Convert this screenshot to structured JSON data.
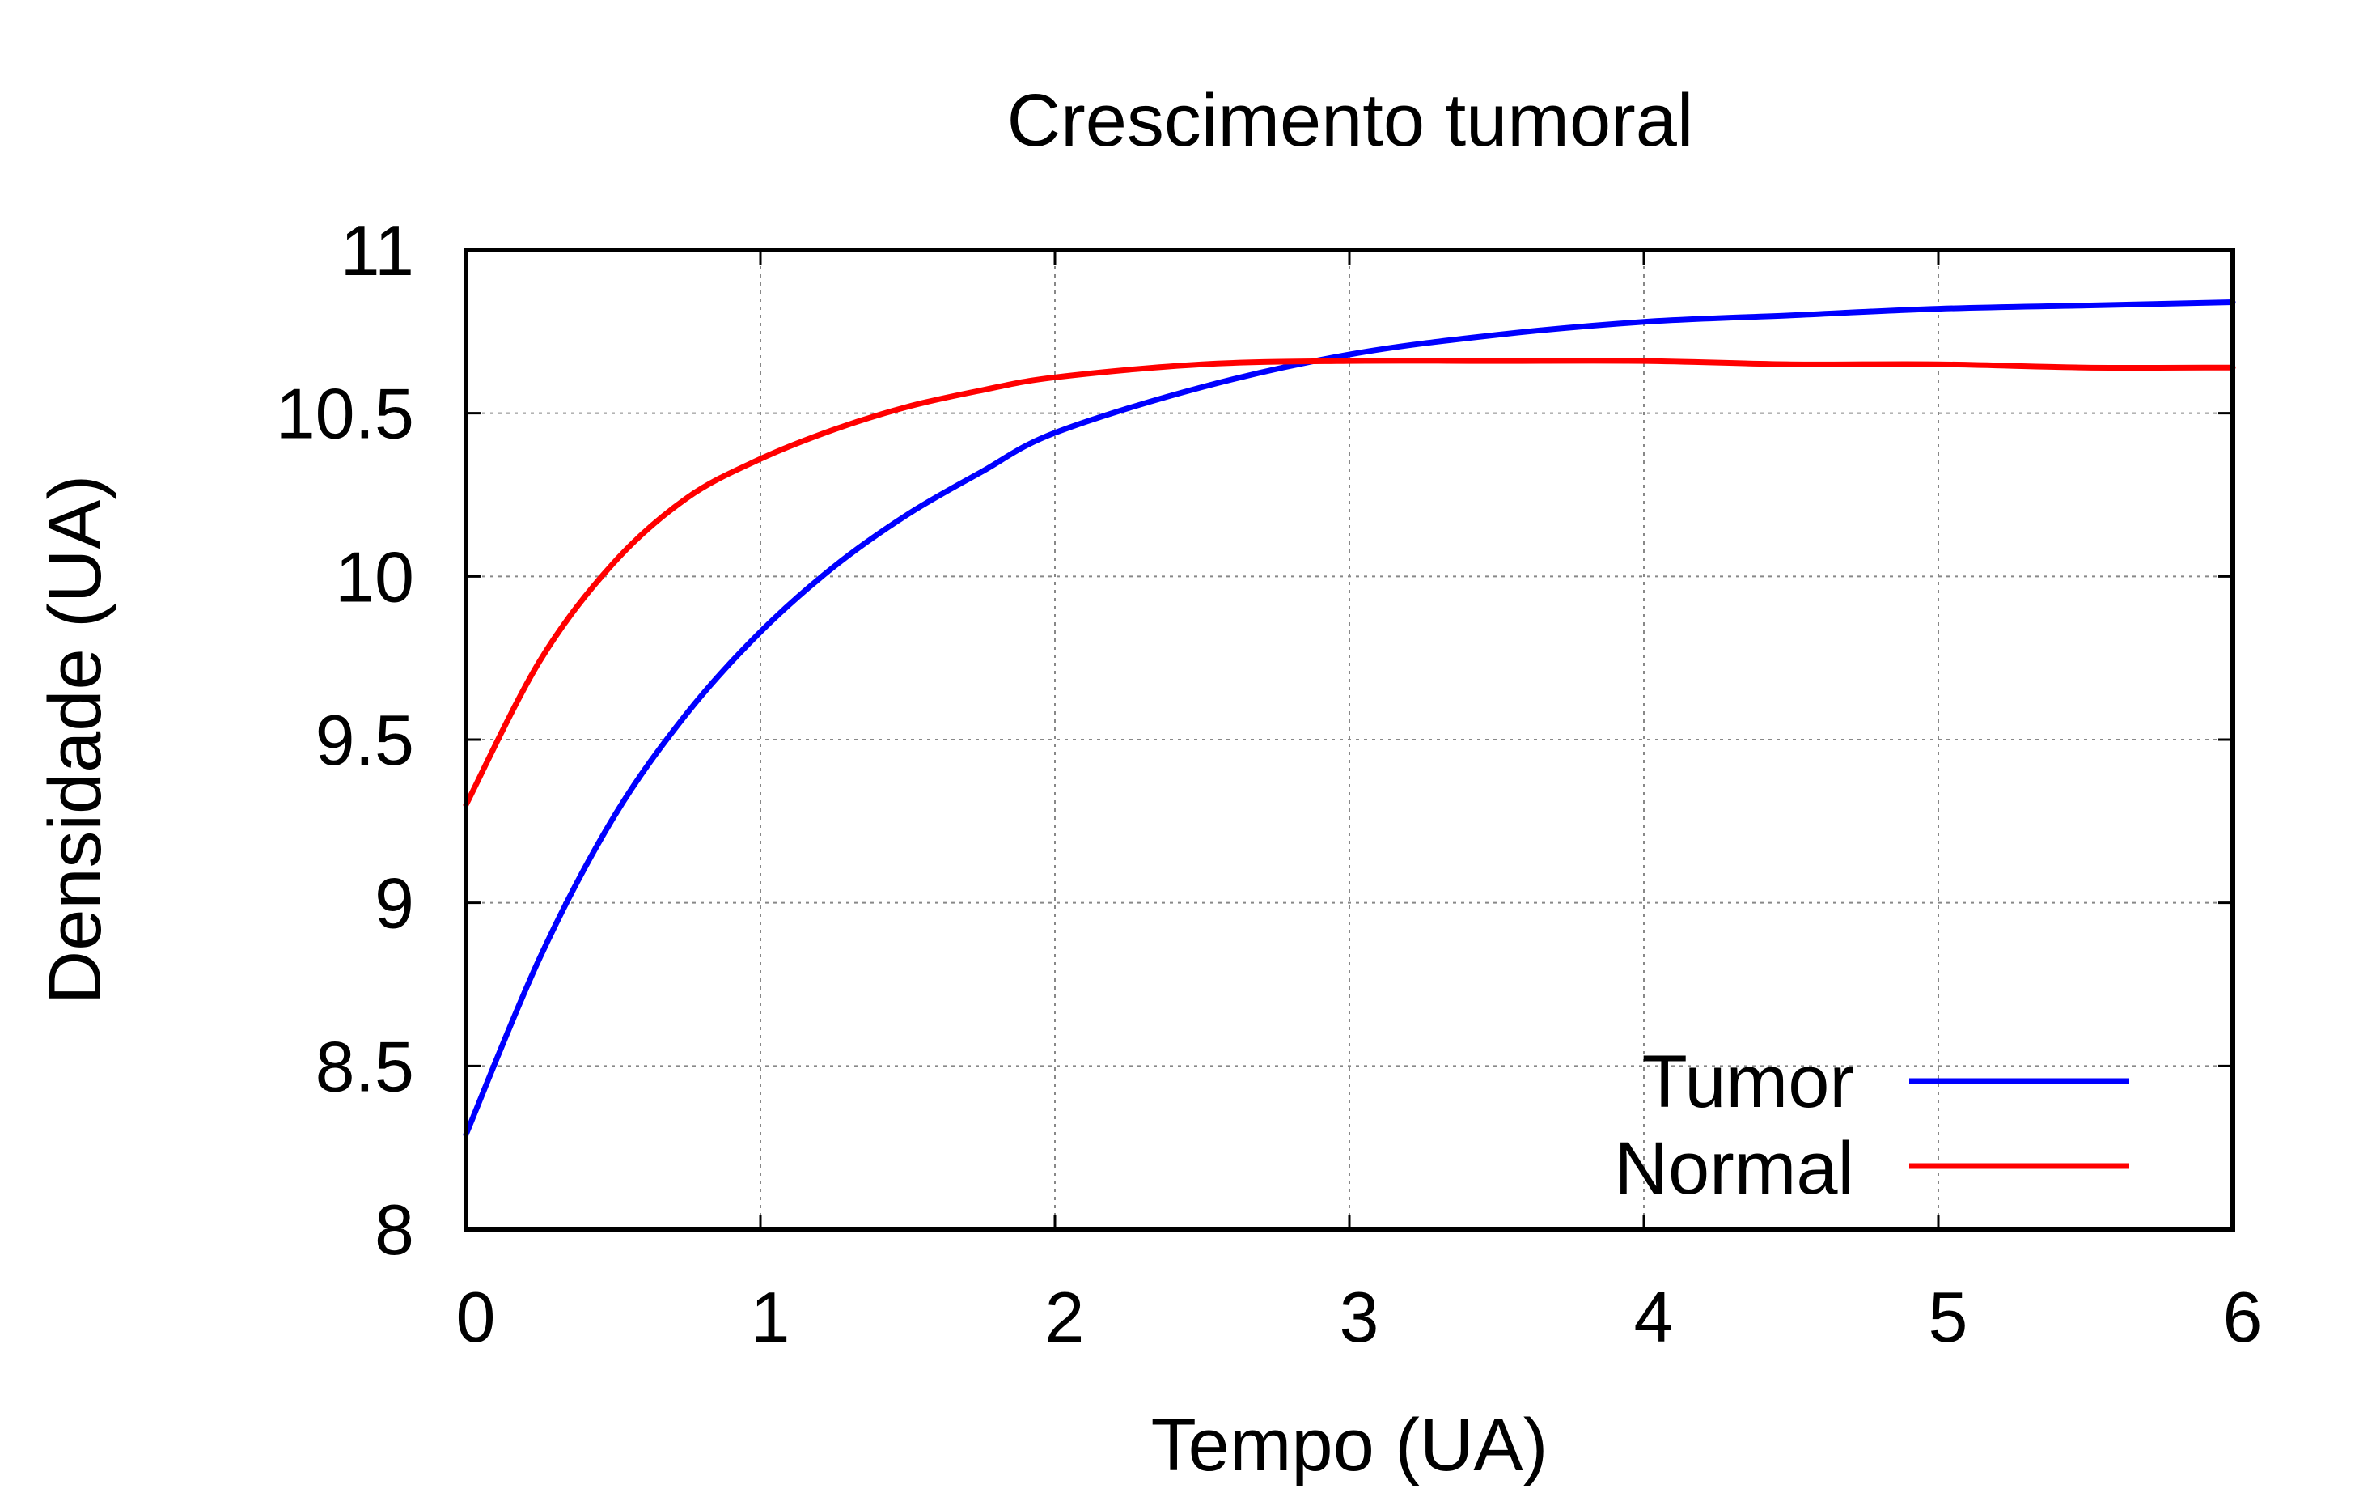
{
  "chart_data": {
    "type": "line",
    "title": "Crescimento tumoral",
    "xlabel": "Tempo (UA)",
    "ylabel": "Densidade (UA)",
    "xlim": [
      0,
      6
    ],
    "ylim": [
      8,
      11
    ],
    "xticks": [
      0,
      1,
      2,
      3,
      4,
      5,
      6
    ],
    "yticks": [
      8,
      8.5,
      9,
      9.5,
      10,
      10.5,
      11
    ],
    "xtick_labels": [
      "0",
      "1",
      "2",
      "3",
      "4",
      "5",
      "6"
    ],
    "ytick_labels": [
      "8",
      "8.5",
      "9",
      "9.5",
      "10",
      "10.5",
      "11"
    ],
    "grid": true,
    "legend_position": "bottom-right",
    "x": [
      0,
      0.25,
      0.5,
      0.75,
      1,
      1.25,
      1.5,
      1.75,
      2,
      2.5,
      3,
      3.5,
      4,
      4.5,
      5,
      5.5,
      6
    ],
    "series": [
      {
        "name": "Tumor",
        "color": "#0000ff",
        "values": [
          8.29,
          8.83,
          9.26,
          9.58,
          9.83,
          10.03,
          10.19,
          10.32,
          10.44,
          10.58,
          10.68,
          10.74,
          10.78,
          10.8,
          10.82,
          10.83,
          10.84
        ]
      },
      {
        "name": "Normal",
        "color": "#ff0000",
        "values": [
          9.3,
          9.74,
          10.04,
          10.24,
          10.36,
          10.45,
          10.52,
          10.57,
          10.61,
          10.65,
          10.66,
          10.66,
          10.66,
          10.65,
          10.65,
          10.64,
          10.64
        ]
      }
    ]
  }
}
